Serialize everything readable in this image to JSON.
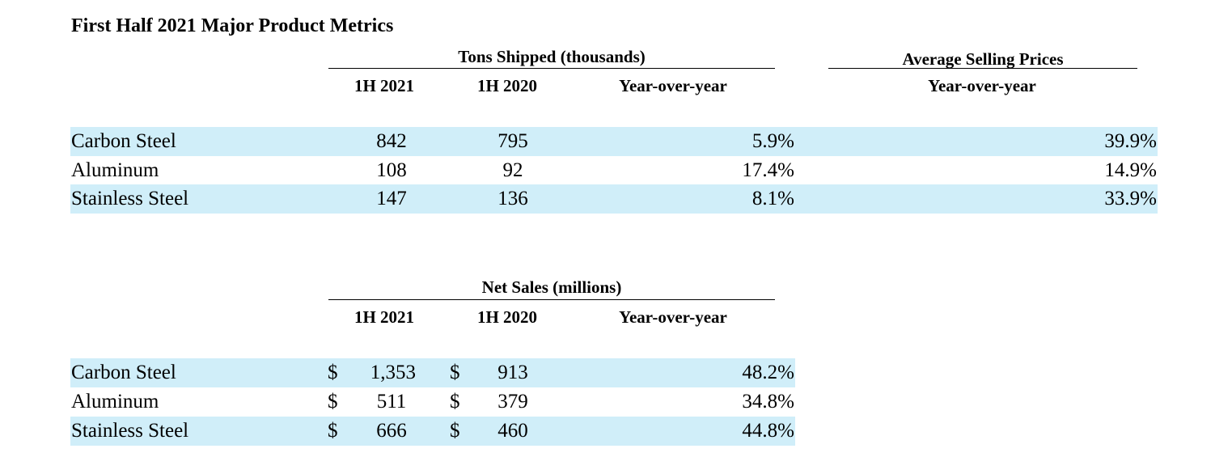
{
  "title": "First Half 2021 Major Product Metrics",
  "tons": {
    "group_label": "Tons Shipped (thousands)",
    "columns": [
      "1H 2021",
      "1H 2020",
      "Year-over-year"
    ],
    "rows": [
      {
        "label": "Carbon Steel",
        "h2021": "842",
        "h2020": "795",
        "yoy": "5.9%"
      },
      {
        "label": "Aluminum",
        "h2021": "108",
        "h2020": "92",
        "yoy": "17.4%"
      },
      {
        "label": "Stainless Steel",
        "h2021": "147",
        "h2020": "136",
        "yoy": "8.1%"
      }
    ]
  },
  "asp": {
    "group_label": "Average Selling Prices",
    "column": "Year-over-year",
    "values": [
      "39.9%",
      "14.9%",
      "33.9%"
    ]
  },
  "net_sales": {
    "group_label": "Net Sales (millions)",
    "columns": [
      "1H 2021",
      "1H 2020",
      "Year-over-year"
    ],
    "currency_symbol": "$",
    "rows": [
      {
        "label": "Carbon Steel",
        "h2021": "1,353",
        "h2020": "913",
        "yoy": "48.2%"
      },
      {
        "label": "Aluminum",
        "h2021": "511",
        "h2020": "379",
        "yoy": "34.8%"
      },
      {
        "label": "Stainless Steel",
        "h2021": "666",
        "h2020": "460",
        "yoy": "44.8%"
      }
    ]
  },
  "colors": {
    "row_shade": "#d0eef9",
    "text": "#000000",
    "background": "#ffffff"
  }
}
